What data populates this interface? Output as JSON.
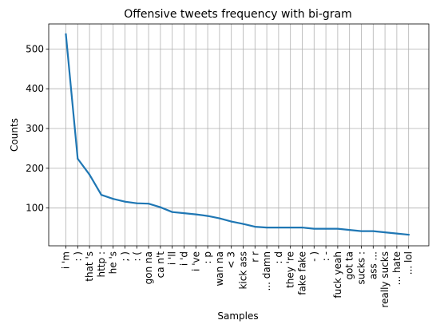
{
  "chart_data": {
    "type": "line",
    "title": "Offensive tweets frequency with bi-gram",
    "xlabel": "Samples",
    "ylabel": "Counts",
    "grid": true,
    "ylim": [
      5,
      563
    ],
    "yticks": [
      100,
      200,
      300,
      400,
      500
    ],
    "categories": [
      "i 'm",
      ": )",
      "that 's",
      "http :",
      "he 's",
      "; )",
      ": (",
      "gon na",
      "ca n't",
      "i 'll",
      "i 'd",
      "i 've",
      ": p",
      "wan na",
      "< 3",
      "kick ass",
      "r r",
      "... damn",
      ": d",
      "they 're",
      "fake fake",
      "- )",
      ": -",
      "fuck yeah",
      "got ta",
      "sucks :",
      "ass ...",
      "really sucks",
      "... hate",
      "... lol"
    ],
    "series": [
      {
        "color": "#1f77b4",
        "values": [
          537,
          224,
          184,
          133,
          123,
          116,
          112,
          111,
          102,
          90,
          87,
          84,
          80,
          74,
          66,
          60,
          53,
          51,
          51,
          51,
          51,
          48,
          48,
          48,
          45,
          42,
          42,
          39,
          36,
          33
        ]
      }
    ]
  }
}
